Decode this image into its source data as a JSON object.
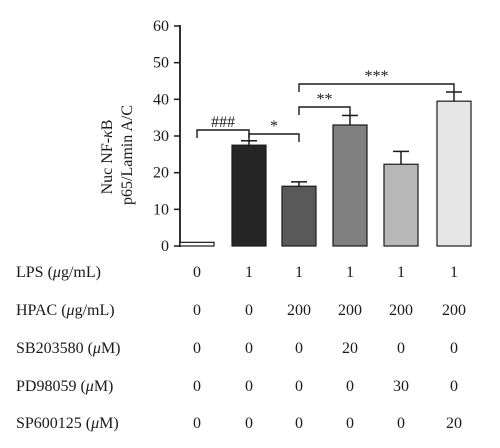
{
  "chart_data": {
    "type": "bar",
    "ylabel_line1": "Nuc NF-",
    "ylabel_kappa": "κ",
    "ylabel_line1_end": "B",
    "ylabel_line2": "p65/Lamin A/C",
    "ylim": [
      0,
      60
    ],
    "yticks": [
      "0",
      "10",
      "20",
      "30",
      "40",
      "50",
      "60"
    ],
    "values": [
      1.0,
      27.5,
      16.3,
      33.0,
      22.3,
      39.5
    ],
    "errors": [
      0,
      1.2,
      1.2,
      2.6,
      3.5,
      2.5
    ],
    "colors": [
      "#ffffff",
      "#262626",
      "#595959",
      "#808080",
      "#b8b8b8",
      "#e6e6e6"
    ],
    "significance": [
      {
        "label": "###",
        "from": 1,
        "to": 2
      },
      {
        "label": "*",
        "from": 2,
        "to": 3
      },
      {
        "label": "**",
        "from": 3,
        "to": 4
      },
      {
        "label": "***",
        "from": 3,
        "to": 6
      }
    ]
  },
  "conditions": [
    {
      "prefix": "LPS (",
      "unit_italic": "μ",
      "suffix": "g/mL)",
      "values": [
        "0",
        "1",
        "1",
        "1",
        "1",
        "1"
      ]
    },
    {
      "prefix": "HPAC (",
      "unit_italic": "μ",
      "suffix": "g/mL)",
      "values": [
        "0",
        "0",
        "200",
        "200",
        "200",
        "200"
      ]
    },
    {
      "prefix": "SB203580 (",
      "unit_italic": "μ",
      "suffix": "M)",
      "values": [
        "0",
        "0",
        "0",
        "20",
        "0",
        "0"
      ]
    },
    {
      "prefix": "PD98059 (",
      "unit_italic": "μ",
      "suffix": "M)",
      "values": [
        "0",
        "0",
        "0",
        "0",
        "30",
        "0"
      ]
    },
    {
      "prefix": "SP600125 (",
      "unit_italic": "μ",
      "suffix": "M)",
      "values": [
        "0",
        "0",
        "0",
        "0",
        "0",
        "20"
      ]
    }
  ]
}
